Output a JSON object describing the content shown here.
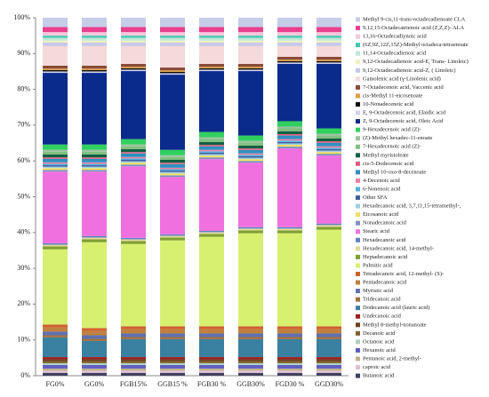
{
  "chart_data": {
    "type": "stacked_bar",
    "categories": [
      "FG0%",
      "GG0%",
      "FGB15%",
      "GGB15 %",
      "FGB30 %",
      "GGB30%",
      "FGD30 %",
      "GGD30%"
    ],
    "ylim": [
      0,
      100
    ],
    "yticks": [
      {
        "value": 0,
        "label": "0%"
      },
      {
        "value": 10,
        "label": "10%"
      },
      {
        "value": 20,
        "label": "20%"
      },
      {
        "value": 30,
        "label": "30%"
      },
      {
        "value": 40,
        "label": "40%"
      },
      {
        "value": 50,
        "label": "50%"
      },
      {
        "value": 60,
        "label": "60%"
      },
      {
        "value": 70,
        "label": "70%"
      },
      {
        "value": 80,
        "label": "80%"
      },
      {
        "value": 90,
        "label": "90%"
      },
      {
        "value": 100,
        "label": "100%"
      }
    ],
    "series": [
      {
        "name": "Methyl 9-cis,11-trans-octadecadienoate CLA",
        "color": "#c5cde8",
        "values": [
          2.6,
          2.6,
          2.6,
          2.6,
          2.6,
          2.6,
          2.6,
          2.6
        ]
      },
      {
        "name": "9,12,15-Octadecatrienoic acid (Z,Z,Z)- ALA",
        "color": "#e8408e",
        "values": [
          1.4,
          1.4,
          1.4,
          1.4,
          1.4,
          1.4,
          1.4,
          1.4
        ]
      },
      {
        "name": "13,16-Octadecadiynoic acid",
        "color": "#f4c6dc",
        "values": [
          1.0,
          1.0,
          1.0,
          1.0,
          1.0,
          1.0,
          1.0,
          1.0
        ]
      },
      {
        "name": "(6Z,9Z,12Z,15Z)-Methyl octadeca-tetraenoate",
        "color": "#40c8b0",
        "values": [
          0.6,
          0.6,
          0.6,
          0.6,
          0.6,
          0.6,
          0.6,
          0.6
        ]
      },
      {
        "name": "11,14-Octadecadienoic acid",
        "color": "#c0e8d8",
        "values": [
          0.8,
          0.8,
          0.8,
          0.8,
          0.8,
          0.8,
          0.8,
          0.8
        ]
      },
      {
        "name": "9,12-Octadecadienoic acid-E, Trans- Linoleic)",
        "color": "#f0f0c0",
        "values": [
          0.5,
          0.5,
          0.5,
          0.5,
          0.5,
          0.5,
          0.5,
          0.5
        ]
      },
      {
        "name": "9,12-Octadecadienoic acid-Z, ( Linoleic)",
        "color": "#c8c8e8",
        "values": [
          1.0,
          1.0,
          1.0,
          1.0,
          1.0,
          1.0,
          1.0,
          1.0
        ]
      },
      {
        "name": "Gamolenic acid (γ-Linolenic acid)",
        "color": "#f4dada",
        "values": [
          5.5,
          5.5,
          5,
          6,
          5,
          5,
          3,
          3
        ]
      },
      {
        "name": "7-Octadecenoic acid, Vaccenic acid",
        "color": "#8a4a3a",
        "values": [
          0.8,
          0.8,
          0.8,
          0.8,
          0.8,
          0.8,
          0.8,
          0.8
        ]
      },
      {
        "name": "cis-Methyl 11-eicosenoate",
        "color": "#e0a040",
        "values": [
          0.4,
          0.4,
          0.4,
          0.4,
          0.4,
          0.4,
          0.4,
          0.4
        ]
      },
      {
        "name": "10-Nonadecenoic acid",
        "color": "#101010",
        "values": [
          0.4,
          0.4,
          0.4,
          0.4,
          0.4,
          0.4,
          0.4,
          0.4
        ]
      },
      {
        "name": "E, 9-Octadecenoic acid, Elaidic acid",
        "color": "#d0d0f0",
        "values": [
          0.4,
          0.4,
          0.4,
          0.4,
          0.4,
          0.4,
          0.4,
          0.4
        ]
      },
      {
        "name": "Z, 9-Octadecenoic acid, Oleic Acid",
        "color": "#0a2a8c",
        "values": [
          20,
          20,
          19,
          21,
          17,
          18,
          16,
          18
        ]
      },
      {
        "name": "9-Hexadecenoic acid (Z)-",
        "color": "#30d060",
        "values": [
          1.5,
          1.5,
          1.5,
          1.5,
          1.5,
          1.5,
          1.5,
          1.5
        ]
      },
      {
        "name": "(Z)-Methyl hexadec-11-enoate",
        "color": "#a0c0a0",
        "values": [
          0.5,
          0.5,
          0.5,
          0.5,
          0.5,
          0.5,
          0.5,
          0.5
        ]
      },
      {
        "name": "7-Hexadecenoic acid (Z)-",
        "color": "#80c080",
        "values": [
          0.8,
          0.8,
          0.8,
          0.8,
          0.8,
          0.8,
          0.8,
          0.8
        ]
      },
      {
        "name": "Methyl myristoleate",
        "color": "#106040",
        "values": [
          0.8,
          0.8,
          0.8,
          0.8,
          0.8,
          0.8,
          0.8,
          0.8
        ]
      },
      {
        "name": "cis-5-Dodecenoic acid",
        "color": "#e06080",
        "values": [
          0.4,
          0.4,
          0.4,
          0.4,
          0.4,
          0.4,
          0.4,
          0.4
        ]
      },
      {
        "name": "Methyl 10-oxo-8-decenoate",
        "color": "#3090c0",
        "values": [
          1.0,
          1.0,
          1.0,
          1.0,
          1.0,
          1.0,
          1.0,
          1.0
        ]
      },
      {
        "name": "4-Decenoic acid",
        "color": "#f080a0",
        "values": [
          0.4,
          0.4,
          0.4,
          0.4,
          0.4,
          0.4,
          0.4,
          0.4
        ]
      },
      {
        "name": "6-Nonenoic acid",
        "color": "#50b0e0",
        "values": [
          0.4,
          0.4,
          0.4,
          0.4,
          0.4,
          0.4,
          0.4,
          0.4
        ]
      },
      {
        "name": "Other SFA",
        "color": "#4060a0",
        "values": [
          0.4,
          0.4,
          0.4,
          0.4,
          0.4,
          0.4,
          0.4,
          0.4
        ]
      },
      {
        "name": "Hexadecanoic acid, 3,7,11,15-tetramethyl-,",
        "color": "#a0d0e0",
        "values": [
          0.4,
          0.4,
          0.4,
          0.4,
          0.4,
          0.4,
          0.4,
          0.4
        ]
      },
      {
        "name": "Eicosanoic acid",
        "color": "#f0e060",
        "values": [
          0.5,
          0.5,
          0.5,
          0.5,
          0.5,
          0.5,
          0.5,
          0.5
        ]
      },
      {
        "name": "Nonadecanoic acid",
        "color": "#8090c0",
        "values": [
          0.5,
          0.5,
          0.5,
          0.5,
          0.5,
          0.5,
          0.5,
          0.5
        ]
      },
      {
        "name": "Stearic acid",
        "color": "#f070e0",
        "values": [
          20,
          18,
          20,
          16,
          20,
          18,
          22,
          19
        ]
      },
      {
        "name": "Hexadecanoic acid",
        "color": "#6080c0",
        "values": [
          0.4,
          0.4,
          0.4,
          0.4,
          0.4,
          0.4,
          0.4,
          0.4
        ]
      },
      {
        "name": "Hexadecanoic acid, 14-methyl-",
        "color": "#e0d8a0",
        "values": [
          0.5,
          0.5,
          0.5,
          0.5,
          0.5,
          0.5,
          0.5,
          0.5
        ]
      },
      {
        "name": "Heptadecanoic acid",
        "color": "#80a030",
        "values": [
          0.8,
          0.8,
          0.8,
          0.8,
          0.8,
          0.8,
          0.8,
          0.8
        ]
      },
      {
        "name": "Palmitic acid",
        "color": "#d8f070",
        "values": [
          21,
          24,
          23,
          24,
          25,
          26,
          26,
          27
        ]
      },
      {
        "name": "Tetradecanoic acid, 12-methyl- (S)-",
        "color": "#d06030",
        "values": [
          0.8,
          0.8,
          0.8,
          0.8,
          0.8,
          0.8,
          0.8,
          0.8
        ]
      },
      {
        "name": "Pentadecanoic acid",
        "color": "#c08040",
        "values": [
          1.2,
          1.2,
          1.2,
          1.2,
          1.2,
          1.2,
          1.2,
          1.2
        ]
      },
      {
        "name": "Myristic acid",
        "color": "#6070b0",
        "values": [
          1.0,
          1.0,
          1.0,
          1.0,
          1.0,
          1.0,
          1.0,
          1.0
        ]
      },
      {
        "name": "Tridecanoic acid",
        "color": "#a07040",
        "values": [
          0.6,
          0.6,
          0.6,
          0.6,
          0.6,
          0.6,
          0.6,
          0.6
        ]
      },
      {
        "name": "Dodecanoic acid (lauric acid)",
        "color": "#3a80a0",
        "values": [
          5.5,
          4.5,
          5,
          5,
          5,
          5,
          5,
          5
        ]
      },
      {
        "name": "Undecanoic acid",
        "color": "#a02020",
        "values": [
          0.6,
          0.6,
          0.6,
          0.6,
          0.6,
          0.6,
          0.6,
          0.6
        ]
      },
      {
        "name": "Methyl 8-methyl-nonanoate",
        "color": "#704020",
        "values": [
          0.5,
          0.5,
          0.5,
          0.5,
          0.5,
          0.5,
          0.5,
          0.5
        ]
      },
      {
        "name": "Decanoic acid",
        "color": "#806030",
        "values": [
          0.6,
          0.6,
          0.6,
          0.6,
          0.6,
          0.6,
          0.6,
          0.6
        ]
      },
      {
        "name": "Octanoic acid",
        "color": "#b0d0c0",
        "values": [
          0.5,
          0.5,
          0.5,
          0.5,
          0.5,
          0.5,
          0.5,
          0.5
        ]
      },
      {
        "name": "Hexanoic acid",
        "color": "#6060c0",
        "values": [
          1.0,
          1.0,
          1.0,
          1.0,
          1.0,
          1.0,
          1.0,
          1.0
        ]
      },
      {
        "name": "Pentanoic acid, 2-methyl-",
        "color": "#c0b090",
        "values": [
          0.6,
          0.6,
          0.6,
          0.6,
          0.6,
          0.6,
          0.6,
          0.6
        ]
      },
      {
        "name": "caproic acid",
        "color": "#e0c0d0",
        "values": [
          0.6,
          0.6,
          0.6,
          0.6,
          0.6,
          0.6,
          0.6,
          0.6
        ]
      },
      {
        "name": "Butanoic acid",
        "color": "#404060",
        "values": [
          0.8,
          0.8,
          0.8,
          0.8,
          0.8,
          0.8,
          0.8,
          0.8
        ]
      }
    ]
  }
}
